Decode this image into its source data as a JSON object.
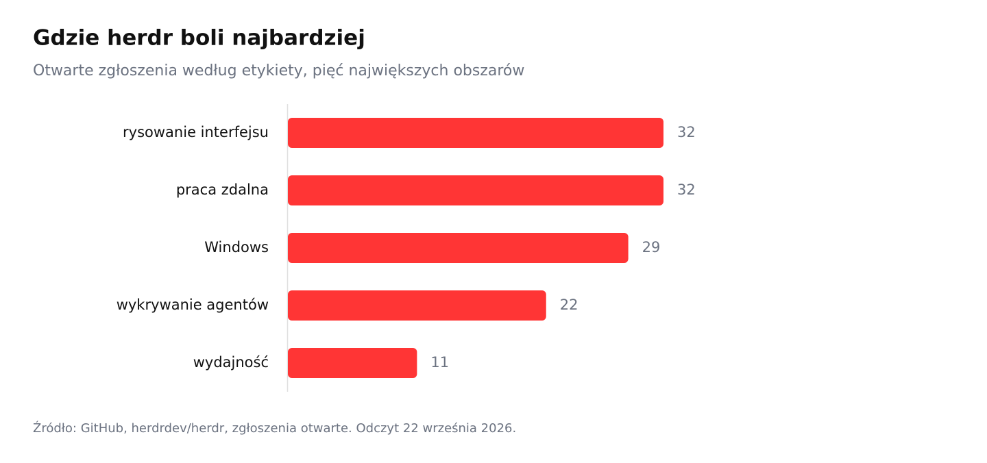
{
  "chart_data": {
    "type": "bar",
    "orientation": "horizontal",
    "title": "Gdzie herdr boli najbardziej",
    "subtitle": "Otwarte zgłoszenia według etykiety, pięć największych obszarów",
    "categories": [
      "rysowanie interfejsu",
      "praca zdalna",
      "Windows",
      "wykrywanie agentów",
      "wydajność"
    ],
    "values": [
      32,
      32,
      29,
      22,
      11
    ],
    "color": "#ff3535",
    "source": "Źródło: GitHub, herdrdev/herdr, zgłoszenia otwarte. Odczyt 22 września 2026."
  }
}
